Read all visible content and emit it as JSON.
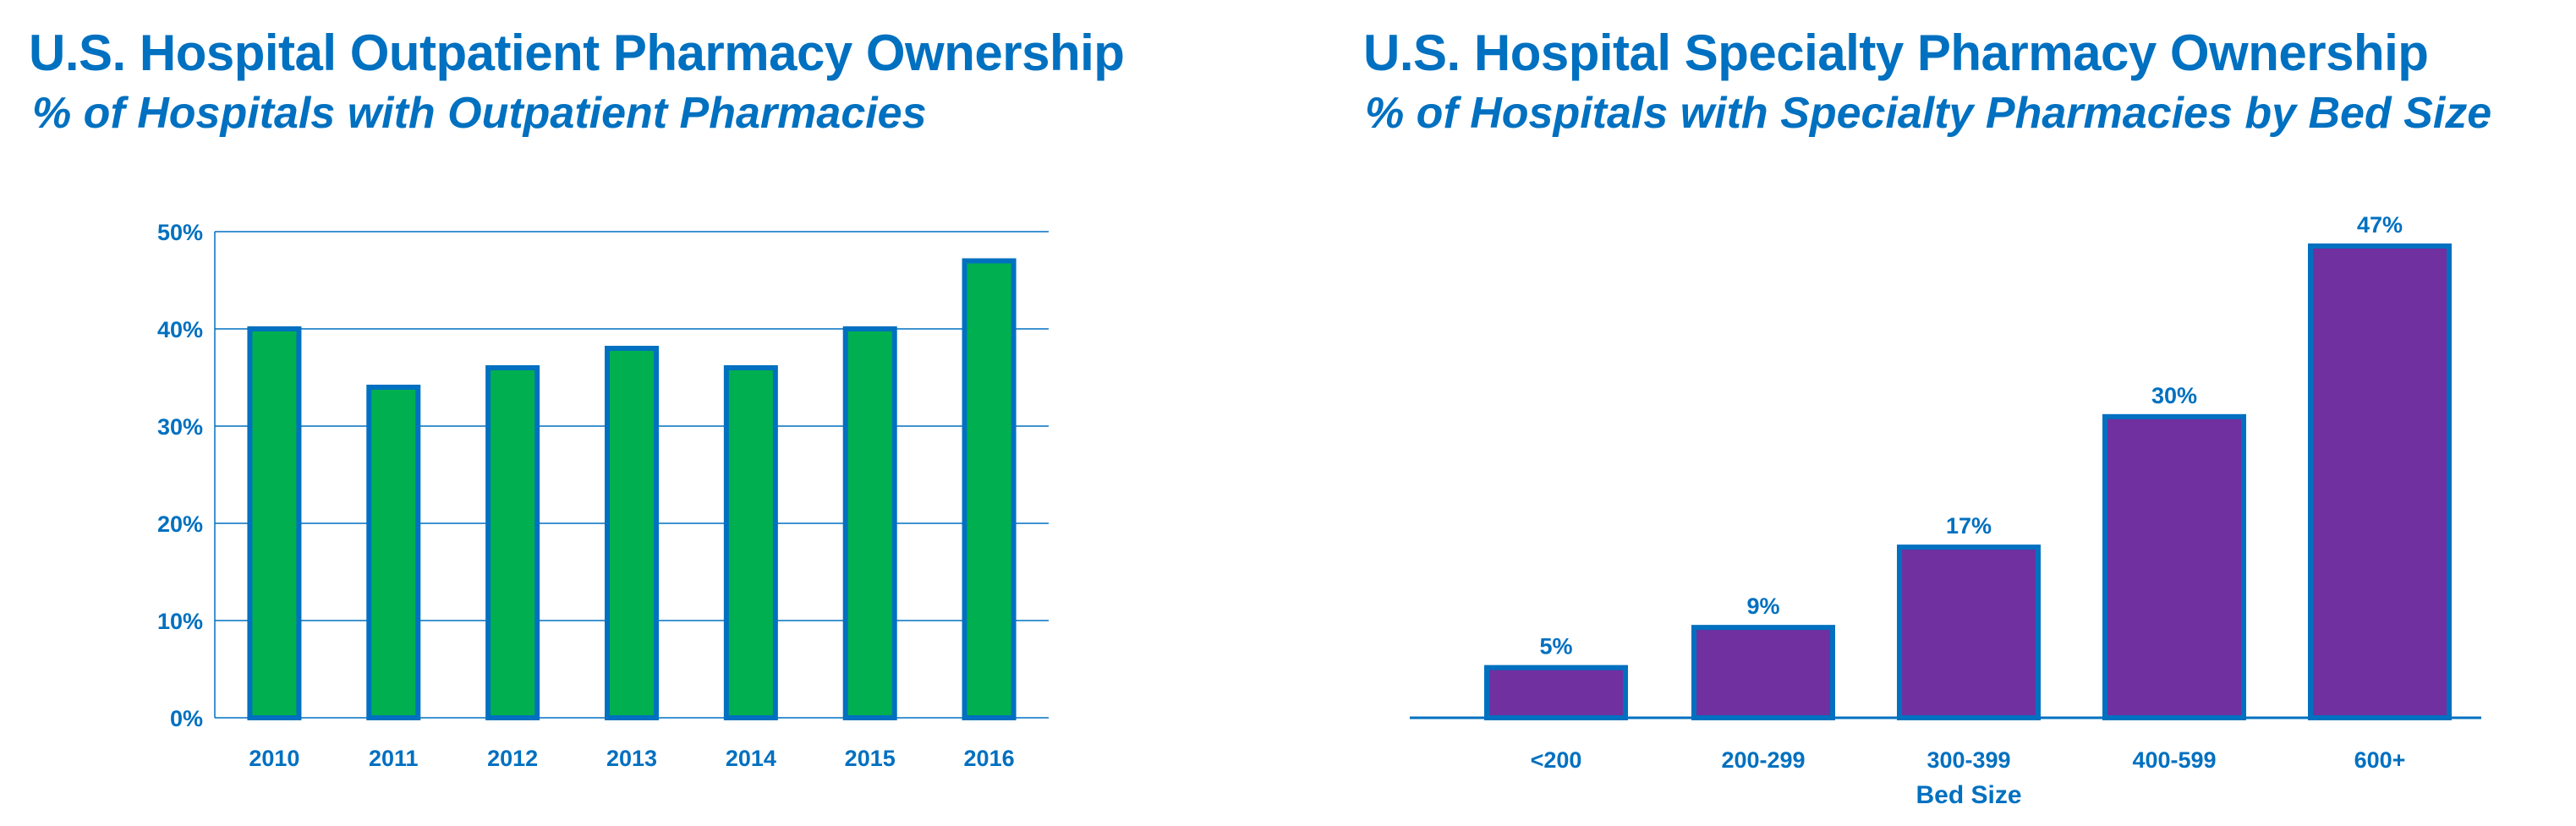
{
  "colors": {
    "text": "#0070C0",
    "bar_border": "#0070C0",
    "left_fill": "#00B050",
    "right_fill": "#7030A0",
    "grid": "#0070C0"
  },
  "chart_data": [
    {
      "type": "bar",
      "title": "U.S. Hospital Outpatient Pharmacy Ownership",
      "subtitle": "% of Hospitals with Outpatient Pharmacies",
      "categories": [
        "2010",
        "2011",
        "2012",
        "2013",
        "2014",
        "2015",
        "2016"
      ],
      "values": [
        40,
        34,
        36,
        38,
        36,
        40,
        47
      ],
      "xlabel": "",
      "ylabel": "",
      "ylim": [
        0,
        50
      ],
      "yticks": [
        "0%",
        "10%",
        "20%",
        "30%",
        "40%",
        "50%"
      ],
      "grid": true,
      "data_labels": false
    },
    {
      "type": "bar",
      "title": "U.S. Hospital Specialty Pharmacy Ownership",
      "subtitle": "% of Hospitals with Specialty Pharmacies by Bed Size",
      "categories": [
        "<200",
        "200-299",
        "300-399",
        "400-599",
        "600+"
      ],
      "values": [
        5,
        9,
        17,
        30,
        47
      ],
      "labels": [
        "5%",
        "9%",
        "17%",
        "30%",
        "47%"
      ],
      "xlabel": "Bed Size",
      "ylabel": "",
      "ylim": [
        0,
        47
      ],
      "grid": false,
      "data_labels": true
    }
  ]
}
